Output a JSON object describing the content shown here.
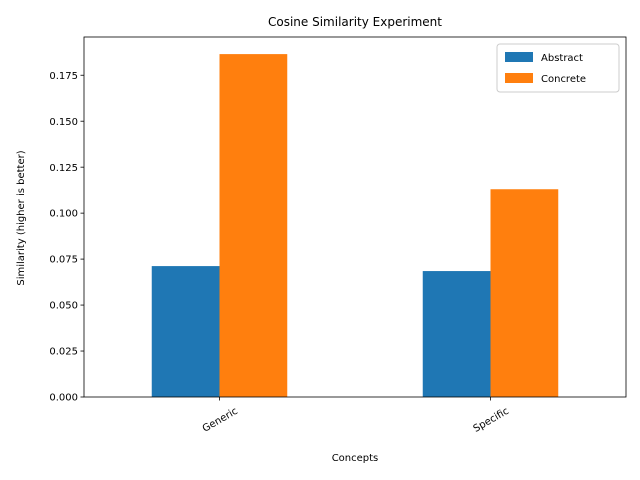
{
  "chart_data": {
    "type": "bar",
    "title": "Cosine Similarity Experiment",
    "xlabel": "Concepts",
    "ylabel": "Similarity (higher is better)",
    "categories": [
      "Generic",
      "Specific"
    ],
    "series": [
      {
        "name": "Abstract",
        "color": "#1f77b4",
        "values": [
          0.0712,
          0.0685
        ]
      },
      {
        "name": "Concrete",
        "color": "#ff7f0e",
        "values": [
          0.1865,
          0.113
        ]
      }
    ],
    "ylim": [
      0,
      0.1958
    ],
    "yticks": [
      "0.000",
      "0.025",
      "0.050",
      "0.075",
      "0.100",
      "0.125",
      "0.150",
      "0.175"
    ],
    "ytick_values": [
      0,
      0.025,
      0.05,
      0.075,
      0.1,
      0.125,
      0.15,
      0.175
    ],
    "xtick_rotation_deg": -30,
    "legend_position": "upper right",
    "grid": false
  }
}
